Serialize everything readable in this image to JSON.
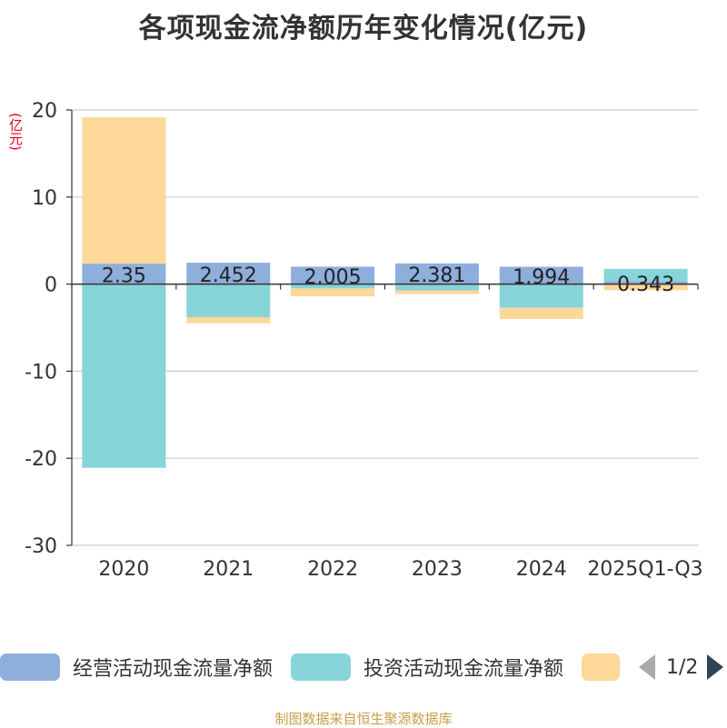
{
  "chart_data": {
    "type": "bar",
    "stacked": true,
    "title": "各项现金流净额历年变化情况(亿元)",
    "ylabel": "(亿元)",
    "ylim": [
      -30,
      20
    ],
    "yticks": [
      20,
      10,
      0,
      -10,
      -20,
      -30
    ],
    "categories": [
      "2020",
      "2021",
      "2022",
      "2023",
      "2024",
      "2025Q1-Q3"
    ],
    "series": [
      {
        "name": "经营活动现金流量净额",
        "color": "#8eaedc",
        "values": [
          2.35,
          2.452,
          2.005,
          2.381,
          1.994,
          0.343
        ],
        "labels": [
          "2.35",
          "2.452",
          "2.005",
          "2.381",
          "1.994",
          "0.343"
        ]
      },
      {
        "name": "投资活动现金流量净额",
        "color": "#87d5d8",
        "values": [
          -21.1,
          -3.8,
          -0.5,
          -0.75,
          -2.7,
          1.4
        ]
      },
      {
        "name": "",
        "color": "#fdd898",
        "values": [
          16.8,
          -0.7,
          -0.9,
          -0.4,
          -1.3,
          -0.7
        ]
      }
    ],
    "legend": {
      "items": [
        {
          "name": "经营活动现金流量净额",
          "color": "#8eaedc"
        },
        {
          "name": "投资活动现金流量净额",
          "color": "#87d5d8"
        },
        {
          "name": "",
          "color": "#fdd898"
        }
      ],
      "page": "1/2"
    }
  },
  "source": "制图数据来自恒生聚源数据库"
}
